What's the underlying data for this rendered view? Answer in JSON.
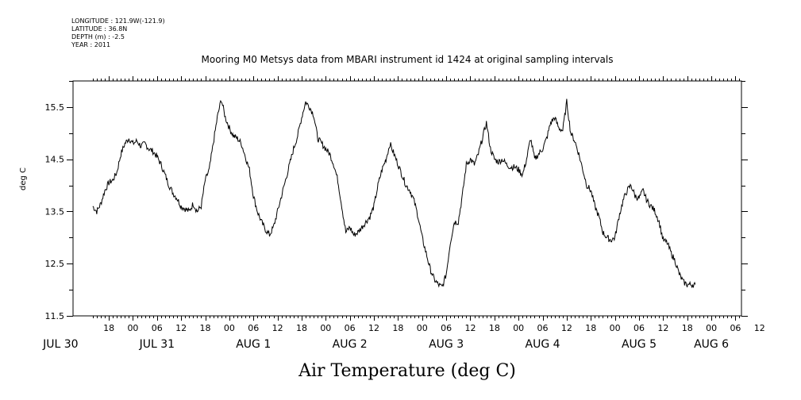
{
  "metadata": [
    "LONGITUDE : 121.9W(-121.9)",
    "LATITUDE : 36.8N",
    "DEPTH (m) : -2.5",
    "YEAR : 2011"
  ],
  "chart_data": {
    "type": "line",
    "title": "Mooring M0 Metsys data from MBARI instrument id 1424 at original sampling intervals",
    "xlabel": "Air Temperature (deg C)",
    "ylabel": "deg C",
    "ylim": [
      11.5,
      16.0
    ],
    "y_ticks": [
      11.5,
      12.5,
      13.5,
      14.5,
      15.5
    ],
    "x_unit": "hours since JUL 30 00:00",
    "xlim": [
      14,
      180
    ],
    "x_ticks": [
      18,
      24,
      30,
      36,
      42,
      48,
      54,
      60,
      66,
      72,
      78,
      84,
      90,
      96,
      102,
      108,
      114,
      120,
      126,
      132,
      138,
      144,
      150,
      156,
      162,
      168,
      174,
      180
    ],
    "x_tick_labels": [
      "18",
      "00",
      "06",
      "12",
      "18",
      "00",
      "06",
      "12",
      "18",
      "00",
      "06",
      "12",
      "18",
      "00",
      "06",
      "12",
      "18",
      "00",
      "06",
      "12",
      "18",
      "00",
      "06",
      "12",
      "18",
      "00",
      "06",
      "12"
    ],
    "date_labels": [
      {
        "x": 6,
        "label": "JUL 30"
      },
      {
        "x": 30,
        "label": "JUL 31"
      },
      {
        "x": 54,
        "label": "AUG 1"
      },
      {
        "x": 78,
        "label": "AUG 2"
      },
      {
        "x": 102,
        "label": "AUG 3"
      },
      {
        "x": 126,
        "label": "AUG 4"
      },
      {
        "x": 150,
        "label": "AUG 5"
      },
      {
        "x": 168,
        "label": "AUG 6"
      }
    ],
    "series": [
      {
        "name": "Air Temperature",
        "points": [
          [
            14,
            13.6
          ],
          [
            15,
            13.5
          ],
          [
            16,
            13.65
          ],
          [
            17,
            13.9
          ],
          [
            18,
            14.05
          ],
          [
            19,
            14.1
          ],
          [
            20,
            14.25
          ],
          [
            21,
            14.6
          ],
          [
            22,
            14.8
          ],
          [
            23,
            14.9
          ],
          [
            24,
            14.8
          ],
          [
            25,
            14.85
          ],
          [
            26,
            14.75
          ],
          [
            27,
            14.8
          ],
          [
            28,
            14.7
          ],
          [
            29,
            14.65
          ],
          [
            30,
            14.55
          ],
          [
            31,
            14.4
          ],
          [
            32,
            14.2
          ],
          [
            33,
            14.0
          ],
          [
            34,
            13.85
          ],
          [
            35,
            13.75
          ],
          [
            36,
            13.6
          ],
          [
            37,
            13.55
          ],
          [
            38,
            13.5
          ],
          [
            39,
            13.65
          ],
          [
            40,
            13.5
          ],
          [
            41,
            13.6
          ],
          [
            42,
            14.1
          ],
          [
            43,
            14.3
          ],
          [
            44,
            14.8
          ],
          [
            45,
            15.3
          ],
          [
            46,
            15.65
          ],
          [
            47,
            15.3
          ],
          [
            48,
            15.1
          ],
          [
            49,
            14.95
          ],
          [
            50,
            14.9
          ],
          [
            51,
            14.8
          ],
          [
            52,
            14.55
          ],
          [
            53,
            14.3
          ],
          [
            54,
            13.8
          ],
          [
            55,
            13.5
          ],
          [
            56,
            13.3
          ],
          [
            57,
            13.15
          ],
          [
            58,
            13.05
          ],
          [
            59,
            13.2
          ],
          [
            60,
            13.5
          ],
          [
            61,
            13.8
          ],
          [
            62,
            14.1
          ],
          [
            63,
            14.4
          ],
          [
            64,
            14.7
          ],
          [
            65,
            14.95
          ],
          [
            66,
            15.3
          ],
          [
            67,
            15.6
          ],
          [
            68,
            15.5
          ],
          [
            69,
            15.35
          ],
          [
            70,
            14.9
          ],
          [
            71,
            14.8
          ],
          [
            72,
            14.7
          ],
          [
            73,
            14.6
          ],
          [
            74,
            14.4
          ],
          [
            75,
            14.1
          ],
          [
            76,
            13.6
          ],
          [
            77,
            13.1
          ],
          [
            78,
            13.2
          ],
          [
            79,
            13.05
          ],
          [
            80,
            13.1
          ],
          [
            81,
            13.2
          ],
          [
            82,
            13.3
          ],
          [
            83,
            13.4
          ],
          [
            84,
            13.6
          ],
          [
            85,
            14.0
          ],
          [
            86,
            14.3
          ],
          [
            87,
            14.5
          ],
          [
            88,
            14.8
          ],
          [
            89,
            14.6
          ],
          [
            90,
            14.4
          ],
          [
            91,
            14.2
          ],
          [
            92,
            14.0
          ],
          [
            93,
            13.9
          ],
          [
            94,
            13.7
          ],
          [
            95,
            13.4
          ],
          [
            96,
            13.0
          ],
          [
            97,
            12.7
          ],
          [
            98,
            12.4
          ],
          [
            99,
            12.2
          ],
          [
            100,
            12.1
          ],
          [
            101,
            12.05
          ],
          [
            102,
            12.3
          ],
          [
            103,
            12.9
          ],
          [
            104,
            13.3
          ],
          [
            105,
            13.3
          ],
          [
            106,
            13.8
          ],
          [
            107,
            14.4
          ],
          [
            108,
            14.5
          ],
          [
            109,
            14.4
          ],
          [
            110,
            14.6
          ],
          [
            111,
            14.9
          ],
          [
            112,
            15.2
          ],
          [
            113,
            14.7
          ],
          [
            114,
            14.5
          ],
          [
            115,
            14.45
          ],
          [
            116,
            14.5
          ],
          [
            117,
            14.4
          ],
          [
            118,
            14.35
          ],
          [
            119,
            14.35
          ],
          [
            120,
            14.3
          ],
          [
            121,
            14.2
          ],
          [
            122,
            14.5
          ],
          [
            123,
            14.9
          ],
          [
            124,
            14.5
          ],
          [
            125,
            14.6
          ],
          [
            126,
            14.7
          ],
          [
            127,
            14.9
          ],
          [
            128,
            15.2
          ],
          [
            129,
            15.3
          ],
          [
            130,
            15.1
          ],
          [
            131,
            15.05
          ],
          [
            132,
            15.6
          ],
          [
            133,
            15.0
          ],
          [
            134,
            14.85
          ],
          [
            135,
            14.6
          ],
          [
            136,
            14.3
          ],
          [
            137,
            14.0
          ],
          [
            138,
            13.9
          ],
          [
            139,
            13.6
          ],
          [
            140,
            13.4
          ],
          [
            141,
            13.1
          ],
          [
            142,
            13.0
          ],
          [
            143,
            12.95
          ],
          [
            144,
            13.0
          ],
          [
            145,
            13.4
          ],
          [
            146,
            13.7
          ],
          [
            147,
            13.9
          ],
          [
            148,
            14.0
          ],
          [
            149,
            13.8
          ],
          [
            150,
            13.75
          ],
          [
            151,
            13.9
          ],
          [
            152,
            13.7
          ],
          [
            153,
            13.6
          ],
          [
            154,
            13.5
          ],
          [
            155,
            13.3
          ],
          [
            156,
            12.95
          ],
          [
            157,
            12.9
          ],
          [
            158,
            12.7
          ],
          [
            159,
            12.55
          ],
          [
            160,
            12.3
          ],
          [
            161,
            12.15
          ],
          [
            162,
            12.1
          ],
          [
            163,
            12.1
          ],
          [
            164,
            12.1
          ]
        ]
      }
    ]
  }
}
